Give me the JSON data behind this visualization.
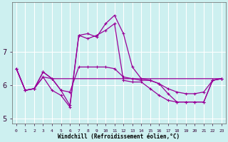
{
  "xlabel": "Windchill (Refroidissement éolien,°C)",
  "background_color": "#cdf0f0",
  "grid_color": "#ffffff",
  "line_color": "#990099",
  "x_hours": [
    0,
    1,
    2,
    3,
    4,
    5,
    6,
    7,
    8,
    9,
    10,
    11,
    12,
    13,
    14,
    15,
    16,
    17,
    18,
    19,
    20,
    21,
    22,
    23
  ],
  "line1": [
    6.5,
    5.85,
    5.9,
    6.25,
    6.2,
    6.2,
    6.2,
    6.2,
    6.2,
    6.2,
    6.2,
    6.2,
    6.2,
    6.2,
    6.2,
    6.2,
    6.2,
    6.2,
    6.2,
    6.2,
    6.2,
    6.2,
    6.2,
    6.2
  ],
  "line2": [
    6.5,
    5.85,
    5.9,
    6.4,
    6.2,
    5.85,
    5.8,
    6.55,
    6.55,
    6.55,
    6.55,
    6.5,
    6.25,
    6.2,
    6.15,
    6.15,
    6.05,
    5.9,
    5.8,
    5.75,
    5.75,
    5.8,
    6.15,
    6.2
  ],
  "line3": [
    6.5,
    5.85,
    5.9,
    6.4,
    6.2,
    5.85,
    5.4,
    7.5,
    7.4,
    7.5,
    7.65,
    7.85,
    6.15,
    6.1,
    6.1,
    5.9,
    5.7,
    5.55,
    5.5,
    5.5,
    5.5,
    5.5,
    6.15,
    6.2
  ],
  "line4": [
    6.5,
    5.85,
    5.9,
    6.25,
    5.85,
    5.7,
    5.35,
    7.5,
    7.55,
    7.45,
    7.85,
    8.1,
    7.55,
    6.55,
    6.2,
    6.15,
    6.05,
    5.75,
    5.5,
    5.5,
    5.5,
    5.5,
    6.15,
    6.2
  ],
  "ylim": [
    4.85,
    8.5
  ],
  "yticks": [
    5,
    6,
    7
  ],
  "xlim": [
    -0.5,
    23.5
  ]
}
